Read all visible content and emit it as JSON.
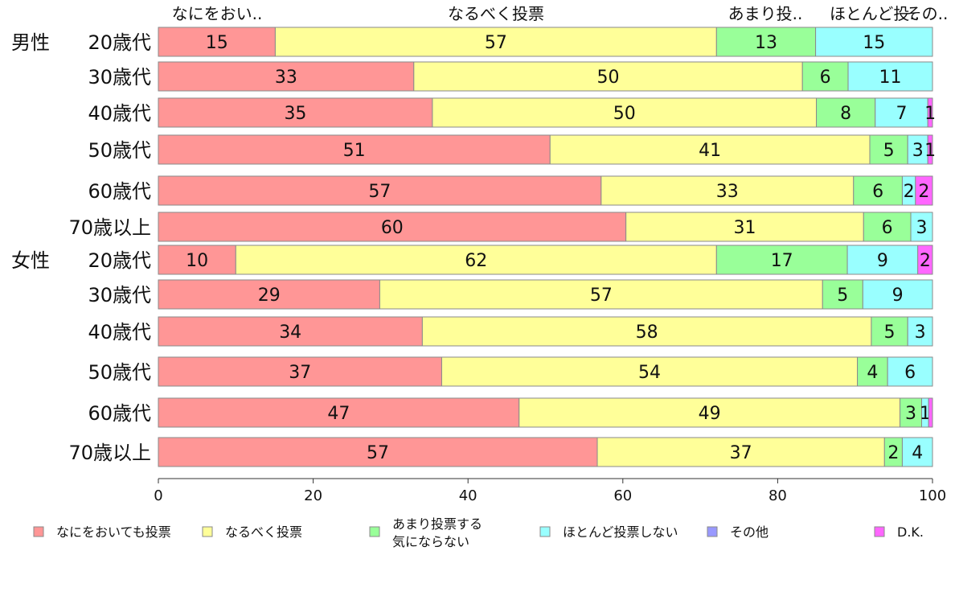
{
  "chart_data": {
    "type": "bar",
    "orientation": "horizontal",
    "stacked": true,
    "xlim": [
      0,
      100
    ],
    "x_ticks": [
      "0",
      "20",
      "40",
      "60",
      "80",
      "100"
    ],
    "grid": false,
    "legend_position": "bottom",
    "top_labels": [
      "なにをおい..",
      "なるべく投票",
      "あまり投..",
      "ほとんど投..",
      "その.."
    ],
    "groups": [
      "男性",
      "",
      "",
      "",
      "",
      "",
      "女性",
      "",
      "",
      "",
      "",
      ""
    ],
    "categories": [
      "20歳代",
      "30歳代",
      "40歳代",
      "50歳代",
      "60歳代",
      "70歳以上",
      "20歳代",
      "30歳代",
      "40歳代",
      "50歳代",
      "60歳代",
      "70歳以上"
    ],
    "series": [
      {
        "name": "なにをおいても投票",
        "color": "#FF9696",
        "values": [
          15.1,
          33.0,
          35.4,
          50.6,
          57.2,
          60.4,
          10.0,
          28.6,
          34.1,
          36.6,
          46.6,
          56.7
        ]
      },
      {
        "name": "なるべく投票",
        "color": "#FFFF99",
        "values": [
          57.0,
          50.2,
          49.6,
          41.3,
          32.6,
          30.7,
          62.1,
          57.2,
          58.0,
          53.7,
          49.2,
          37.1
        ]
      },
      {
        "name": "あまり投票する気にならない",
        "color": "#99FF99",
        "values": [
          12.8,
          5.9,
          7.6,
          4.9,
          6.3,
          6.1,
          16.9,
          5.2,
          4.7,
          3.9,
          2.8,
          2.3
        ]
      },
      {
        "name": "ほとんど投票しない",
        "color": "#99FFFF",
        "values": [
          15.1,
          10.9,
          6.8,
          2.6,
          1.7,
          2.8,
          9.1,
          9.0,
          3.2,
          5.8,
          0.9,
          3.9
        ]
      },
      {
        "name": "その他",
        "color": "#9999FF",
        "values": [
          0,
          0,
          0,
          0,
          0,
          0,
          0,
          0,
          0,
          0,
          0,
          0
        ]
      },
      {
        "name": "D.K.",
        "color": "#FF66FF",
        "values": [
          0,
          0,
          0.6,
          0.6,
          2.2,
          0,
          1.9,
          0,
          0,
          0,
          0.5,
          0
        ]
      }
    ],
    "data_labels": [
      [
        "15",
        "57",
        "13",
        "15",
        "",
        ""
      ],
      [
        "33",
        "50",
        "6",
        "11",
        "",
        ""
      ],
      [
        "35",
        "50",
        "8",
        "7",
        "",
        "1"
      ],
      [
        "51",
        "41",
        "5",
        "3",
        "",
        "1"
      ],
      [
        "57",
        "33",
        "6",
        "2",
        "",
        "2"
      ],
      [
        "60",
        "31",
        "6",
        "3",
        "",
        ""
      ],
      [
        "10",
        "62",
        "17",
        "9",
        "",
        "2"
      ],
      [
        "29",
        "57",
        "5",
        "9",
        "",
        ""
      ],
      [
        "34",
        "58",
        "5",
        "3",
        "",
        ""
      ],
      [
        "37",
        "54",
        "4",
        "6",
        "",
        ""
      ],
      [
        "47",
        "49",
        "3",
        "1",
        "",
        ""
      ],
      [
        "57",
        "37",
        "2",
        "4",
        "",
        ""
      ]
    ],
    "legend": [
      {
        "lines": [
          "なにをおいても投票"
        ],
        "color": "#FF9696"
      },
      {
        "lines": [
          "なるべく投票"
        ],
        "color": "#FFFF99"
      },
      {
        "lines": [
          "あまり投票する",
          "気にならない"
        ],
        "color": "#99FF99"
      },
      {
        "lines": [
          "ほとんど投票しない"
        ],
        "color": "#99FFFF"
      },
      {
        "lines": [
          "その他"
        ],
        "color": "#9999FF"
      },
      {
        "lines": [
          "D.K."
        ],
        "color": "#FF66FF"
      }
    ]
  }
}
